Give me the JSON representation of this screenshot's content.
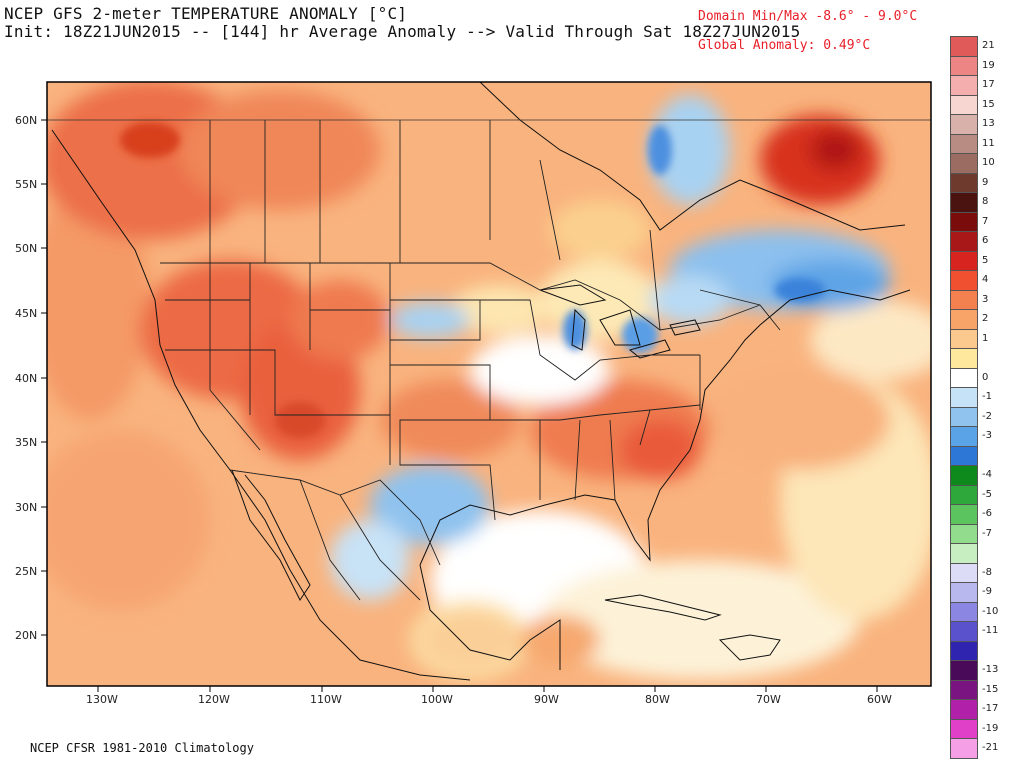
{
  "header": {
    "title_line1": "NCEP GFS 2-meter TEMPERATURE ANOMALY [°C]",
    "title_line2": "Init: 18Z21JUN2015 -- [144] hr Average Anomaly --> Valid Through Sat 18Z27JUN2015",
    "domain_minmax": "Domain Min/Max  -8.6° -   9.0°C",
    "global_anomaly": "Global Anomaly:  0.49°C"
  },
  "footer": {
    "climatology": "NCEP CFSR 1981-2010 Climatology"
  },
  "map": {
    "lat_labels": [
      "60N",
      "55N",
      "50N",
      "45N",
      "40N",
      "35N",
      "30N",
      "25N",
      "20N"
    ],
    "lon_labels": [
      "130W",
      "120W",
      "110W",
      "100W",
      "90W",
      "80W",
      "70W",
      "60W"
    ]
  },
  "colorbar": {
    "cells": [
      {
        "label": "21",
        "color": "#e05a5a"
      },
      {
        "label": "19",
        "color": "#ee8585"
      },
      {
        "label": "17",
        "color": "#f5aeae"
      },
      {
        "label": "15",
        "color": "#f7d6d2"
      },
      {
        "label": "13",
        "color": "#d8b2aa"
      },
      {
        "label": "11",
        "color": "#b88c82"
      },
      {
        "label": "10",
        "color": "#9a6c62"
      },
      {
        "label": "9",
        "color": "#6e3a2e"
      },
      {
        "label": "8",
        "color": "#4a1310"
      },
      {
        "label": "7",
        "color": "#7a0c0c"
      },
      {
        "label": "6",
        "color": "#a81818"
      },
      {
        "label": "5",
        "color": "#d8241e"
      },
      {
        "label": "4",
        "color": "#f05030"
      },
      {
        "label": "3",
        "color": "#f3804f"
      },
      {
        "label": "2",
        "color": "#f8a368"
      },
      {
        "label": "1",
        "color": "#fbc98e"
      },
      {
        "label": "",
        "color": "#fde89e"
      },
      {
        "label": "0",
        "color": "#ffffff"
      },
      {
        "label": "-1",
        "color": "#c6e2f7"
      },
      {
        "label": "-2",
        "color": "#90c4ee"
      },
      {
        "label": "-3",
        "color": "#5aa3e6"
      },
      {
        "label": "",
        "color": "#2d78d6"
      },
      {
        "label": "-4",
        "color": "#0e8a1c"
      },
      {
        "label": "-5",
        "color": "#2ea83a"
      },
      {
        "label": "-6",
        "color": "#5cc45e"
      },
      {
        "label": "-7",
        "color": "#92dc8e"
      },
      {
        "label": "",
        "color": "#c6eec0"
      },
      {
        "label": "-8",
        "color": "#dcdcf6"
      },
      {
        "label": "-9",
        "color": "#b8b8ee"
      },
      {
        "label": "-10",
        "color": "#8a86e2"
      },
      {
        "label": "-11",
        "color": "#5a52cc"
      },
      {
        "label": "",
        "color": "#2e24b0"
      },
      {
        "label": "-13",
        "color": "#4a0a5a"
      },
      {
        "label": "-15",
        "color": "#7a1480"
      },
      {
        "label": "-17",
        "color": "#b020a8"
      },
      {
        "label": "-19",
        "color": "#e040c8"
      },
      {
        "label": "-21",
        "color": "#f5a0e6"
      }
    ]
  }
}
